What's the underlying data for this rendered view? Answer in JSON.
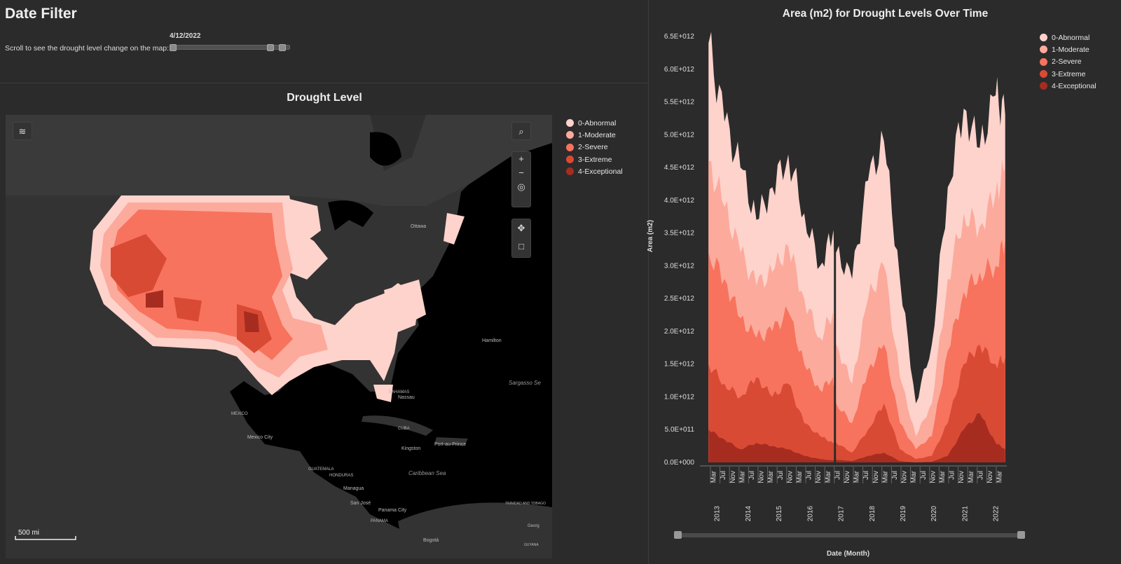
{
  "filter": {
    "title": "Date Filter",
    "instruction": "Scroll to see the drought level change on the map:",
    "selected_date": "4/12/2022",
    "slider_position": 0.88
  },
  "map_panel": {
    "title": "Drought Level",
    "scale_label": "500 mi",
    "places": [
      "Ottawa",
      "Hamilton",
      "Sargasso Se",
      "BAHAMAS",
      "Nassau",
      "MEXICO",
      "Mexico City",
      "CUBA",
      "Kingston",
      "Port-au-Prince",
      "Caribbean Sea",
      "ST. KITTS AND NEVIS",
      "DOMINICA",
      "ST. VIN. AND GREN.",
      "TRINIDAD AND TOBAGO",
      "GUATEMALA",
      "HONDURAS",
      "Managua",
      "San José",
      "Panama City",
      "PANAMA",
      "Bogotá",
      "Georg",
      "GUYANA"
    ],
    "controls": {
      "layers": "layers-icon",
      "search": "search-icon",
      "zoom_in": "+",
      "zoom_out": "−",
      "locate": "locate-icon",
      "pan": "move-icon",
      "select": "select-box-icon"
    }
  },
  "legend": {
    "items": [
      {
        "label": "0-Abnormal",
        "color": "#fdd3cc"
      },
      {
        "label": "1-Moderate",
        "color": "#fcaa9c"
      },
      {
        "label": "2-Severe",
        "color": "#f7735d"
      },
      {
        "label": "3-Extreme",
        "color": "#d94a35"
      },
      {
        "label": "4-Exceptional",
        "color": "#a72c20"
      }
    ]
  },
  "chart_data": {
    "type": "area",
    "title": "Area (m2) for Drought Levels Over Time",
    "ylabel": "Area (m2)",
    "xlabel": "Date (Month)",
    "ylim": [
      0,
      6500000000000.0
    ],
    "yticks": [
      "0.0E+000",
      "5.0E+011",
      "1.0E+012",
      "1.5E+012",
      "2.0E+012",
      "2.5E+012",
      "3.0E+012",
      "3.5E+012",
      "4.0E+012",
      "4.5E+012",
      "5.0E+012",
      "5.5E+012",
      "6.0E+012",
      "6.5E+012"
    ],
    "month_ticks": [
      "Mar",
      "Jul",
      "Nov",
      "Mar",
      "Jul",
      "Nov",
      "Mar",
      "Jul",
      "Nov",
      "Mar",
      "Jul",
      "Nov",
      "Mar",
      "Jul",
      "Nov",
      "Mar",
      "Jul",
      "Nov",
      "Mar",
      "Jul",
      "Nov",
      "Mar",
      "Jul",
      "Nov",
      "Mar",
      "Jul",
      "Nov",
      "Mar",
      "Jul",
      "Nov",
      "Mar"
    ],
    "year_ticks": [
      "2013",
      "2014",
      "2015",
      "2016",
      "2017",
      "2018",
      "2019",
      "2020",
      "2021",
      "2022"
    ],
    "legend_position": "top-right",
    "series_stack_top": [
      {
        "name": "0-Abnormal",
        "x": [
          2013.0,
          2013.5,
          2014.0,
          2014.5,
          2015.0,
          2015.5,
          2016.0,
          2016.5,
          2016.9,
          2017.0,
          2017.5,
          2018.0,
          2018.5,
          2019.0,
          2019.5,
          2020.0,
          2020.5,
          2021.0,
          2021.5,
          2022.0,
          2022.3
        ],
        "y": [
          6400000000000.0,
          5200000000000.0,
          4500000000000.0,
          3700000000000.0,
          4200000000000.0,
          4700000000000.0,
          3800000000000.0,
          3000000000000.0,
          3500000000000.0,
          3200000000000.0,
          2800000000000.0,
          4300000000000.0,
          4900000000000.0,
          2800000000000.0,
          900000000000.0,
          1800000000000.0,
          4200000000000.0,
          5400000000000.0,
          4800000000000.0,
          5600000000000.0,
          5300000000000.0
        ]
      },
      {
        "name": "1-Moderate",
        "x": [
          2013.0,
          2013.5,
          2014.0,
          2014.5,
          2015.0,
          2015.5,
          2016.0,
          2016.5,
          2016.9,
          2017.0,
          2017.5,
          2018.0,
          2018.5,
          2019.0,
          2019.5,
          2020.0,
          2020.5,
          2021.0,
          2021.5,
          2022.0,
          2022.3
        ],
        "y": [
          4600000000000.0,
          3900000000000.0,
          3200000000000.0,
          2700000000000.0,
          2900000000000.0,
          3300000000000.0,
          2500000000000.0,
          1900000000000.0,
          2300000000000.0,
          1800000000000.0,
          1200000000000.0,
          2500000000000.0,
          3000000000000.0,
          1300000000000.0,
          400000000000.0,
          900000000000.0,
          2800000000000.0,
          3800000000000.0,
          3600000000000.0,
          4100000000000.0,
          4500000000000.0
        ]
      },
      {
        "name": "2-Severe",
        "x": [
          2013.0,
          2013.5,
          2014.0,
          2014.5,
          2015.0,
          2015.5,
          2016.0,
          2016.5,
          2016.9,
          2017.0,
          2017.5,
          2018.0,
          2018.5,
          2019.0,
          2019.5,
          2020.0,
          2020.5,
          2021.0,
          2021.5,
          2022.0,
          2022.3
        ],
        "y": [
          3200000000000.0,
          2800000000000.0,
          2200000000000.0,
          1900000000000.0,
          2000000000000.0,
          2300000000000.0,
          1500000000000.0,
          1100000000000.0,
          1300000000000.0,
          900000000000.0,
          600000000000.0,
          1400000000000.0,
          1800000000000.0,
          600000000000.0,
          200000000000.0,
          400000000000.0,
          1700000000000.0,
          2600000000000.0,
          2900000000000.0,
          3000000000000.0,
          3400000000000.0
        ]
      },
      {
        "name": "3-Extreme",
        "x": [
          2013.0,
          2013.5,
          2014.0,
          2014.5,
          2015.0,
          2015.5,
          2016.0,
          2016.5,
          2016.9,
          2017.0,
          2017.5,
          2018.0,
          2018.5,
          2019.0,
          2019.5,
          2020.0,
          2020.5,
          2021.0,
          2021.5,
          2022.0,
          2022.3
        ],
        "y": [
          1500000000000.0,
          1200000000000.0,
          1000000000000.0,
          1300000000000.0,
          1000000000000.0,
          1200000000000.0,
          600000000000.0,
          400000000000.0,
          300000000000.0,
          300000000000.0,
          150000000000.0,
          500000000000.0,
          900000000000.0,
          200000000000.0,
          50000000000.0,
          100000000000.0,
          600000000000.0,
          1500000000000.0,
          1800000000000.0,
          1500000000000.0,
          1600000000000.0
        ]
      },
      {
        "name": "4-Exceptional",
        "x": [
          2013.0,
          2013.5,
          2014.0,
          2014.5,
          2015.0,
          2015.5,
          2016.0,
          2016.5,
          2016.9,
          2017.0,
          2017.5,
          2018.0,
          2018.5,
          2019.0,
          2019.5,
          2020.0,
          2020.5,
          2021.0,
          2021.5,
          2022.0,
          2022.3
        ],
        "y": [
          500000000000.0,
          350000000000.0,
          200000000000.0,
          300000000000.0,
          250000000000.0,
          200000000000.0,
          100000000000.0,
          50000000000.0,
          30000000000.0,
          40000000000.0,
          20000000000.0,
          100000000000.0,
          150000000000.0,
          20000000000.0,
          0.0,
          10000000000.0,
          100000000000.0,
          500000000000.0,
          750000000000.0,
          300000000000.0,
          200000000000.0
        ]
      }
    ]
  }
}
